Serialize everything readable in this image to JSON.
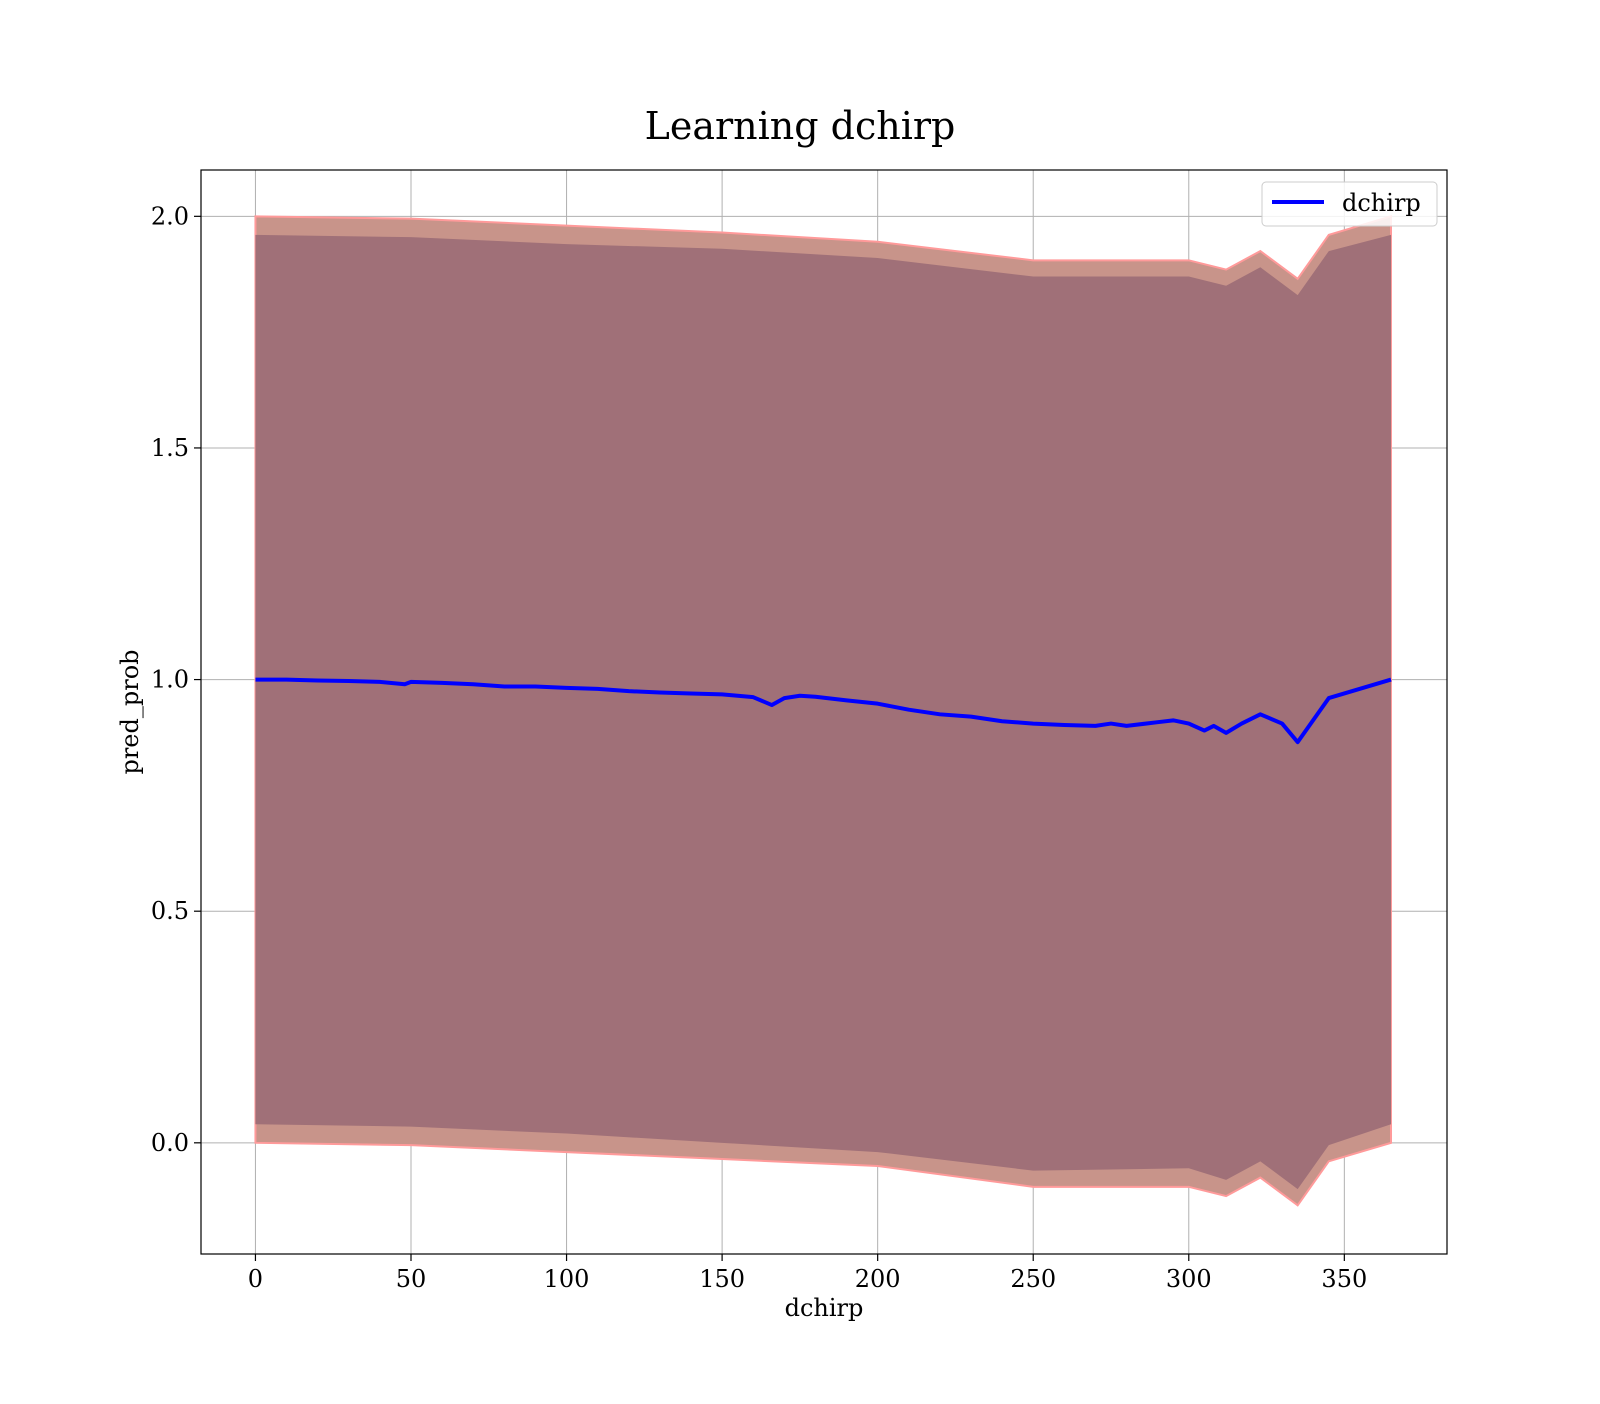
{
  "chart_data": {
    "type": "line",
    "title": "Learning dchirp",
    "xlabel": "dchirp",
    "ylabel": "pred_prob",
    "xlim": [
      -17.5,
      383
    ],
    "ylim": [
      -0.24,
      2.1
    ],
    "xticks": [
      0,
      50,
      100,
      150,
      200,
      250,
      300,
      350
    ],
    "xtick_labels": [
      "0",
      "50",
      "100",
      "150",
      "200",
      "250",
      "300",
      "350"
    ],
    "yticks": [
      0.0,
      0.5,
      1.0,
      1.5,
      2.0
    ],
    "ytick_labels": [
      "0.0",
      "0.5",
      "1.0",
      "1.5",
      "2.0"
    ],
    "grid": true,
    "legend": {
      "position": "upper right",
      "entries": [
        "dchirp"
      ]
    },
    "colors": {
      "line": "#0000ff",
      "outer_band": "#c8948a",
      "inner_band": "#a07078",
      "band_edge": "#ff9a9a",
      "grid": "#b0b0b0"
    },
    "series": [
      {
        "name": "dchirp",
        "x": [
          0,
          10,
          20,
          30,
          40,
          48,
          50,
          60,
          70,
          80,
          90,
          100,
          110,
          120,
          130,
          140,
          150,
          160,
          166,
          170,
          175,
          180,
          190,
          200,
          210,
          220,
          230,
          240,
          250,
          260,
          270,
          275,
          280,
          290,
          295,
          300,
          305,
          308,
          312,
          317,
          323,
          330,
          335,
          345,
          365
        ],
        "y": [
          1.0,
          1.0,
          0.998,
          0.997,
          0.995,
          0.99,
          0.995,
          0.993,
          0.99,
          0.985,
          0.985,
          0.982,
          0.98,
          0.975,
          0.972,
          0.97,
          0.968,
          0.962,
          0.945,
          0.96,
          0.965,
          0.963,
          0.955,
          0.948,
          0.935,
          0.925,
          0.92,
          0.91,
          0.905,
          0.902,
          0.9,
          0.905,
          0.9,
          0.908,
          0.912,
          0.905,
          0.89,
          0.9,
          0.885,
          0.905,
          0.925,
          0.905,
          0.865,
          0.96,
          1.0
        ]
      }
    ],
    "bands": [
      {
        "role": "outer",
        "x": [
          0,
          50,
          100,
          150,
          200,
          250,
          300,
          312,
          323,
          335,
          345,
          365
        ],
        "lower": [
          0.0,
          -0.005,
          -0.02,
          -0.035,
          -0.05,
          -0.095,
          -0.095,
          -0.115,
          -0.075,
          -0.135,
          -0.04,
          0.0
        ],
        "upper": [
          2.0,
          1.995,
          1.98,
          1.965,
          1.945,
          1.905,
          1.905,
          1.885,
          1.925,
          1.865,
          1.96,
          2.0
        ]
      },
      {
        "role": "inner",
        "x": [
          0,
          50,
          100,
          150,
          200,
          250,
          300,
          312,
          323,
          335,
          345,
          365
        ],
        "lower": [
          0.04,
          0.035,
          0.02,
          0.0,
          -0.02,
          -0.06,
          -0.055,
          -0.08,
          -0.04,
          -0.1,
          -0.005,
          0.04
        ],
        "upper": [
          1.96,
          1.955,
          1.94,
          1.93,
          1.91,
          1.87,
          1.87,
          1.85,
          1.89,
          1.83,
          1.925,
          1.96
        ]
      }
    ]
  }
}
